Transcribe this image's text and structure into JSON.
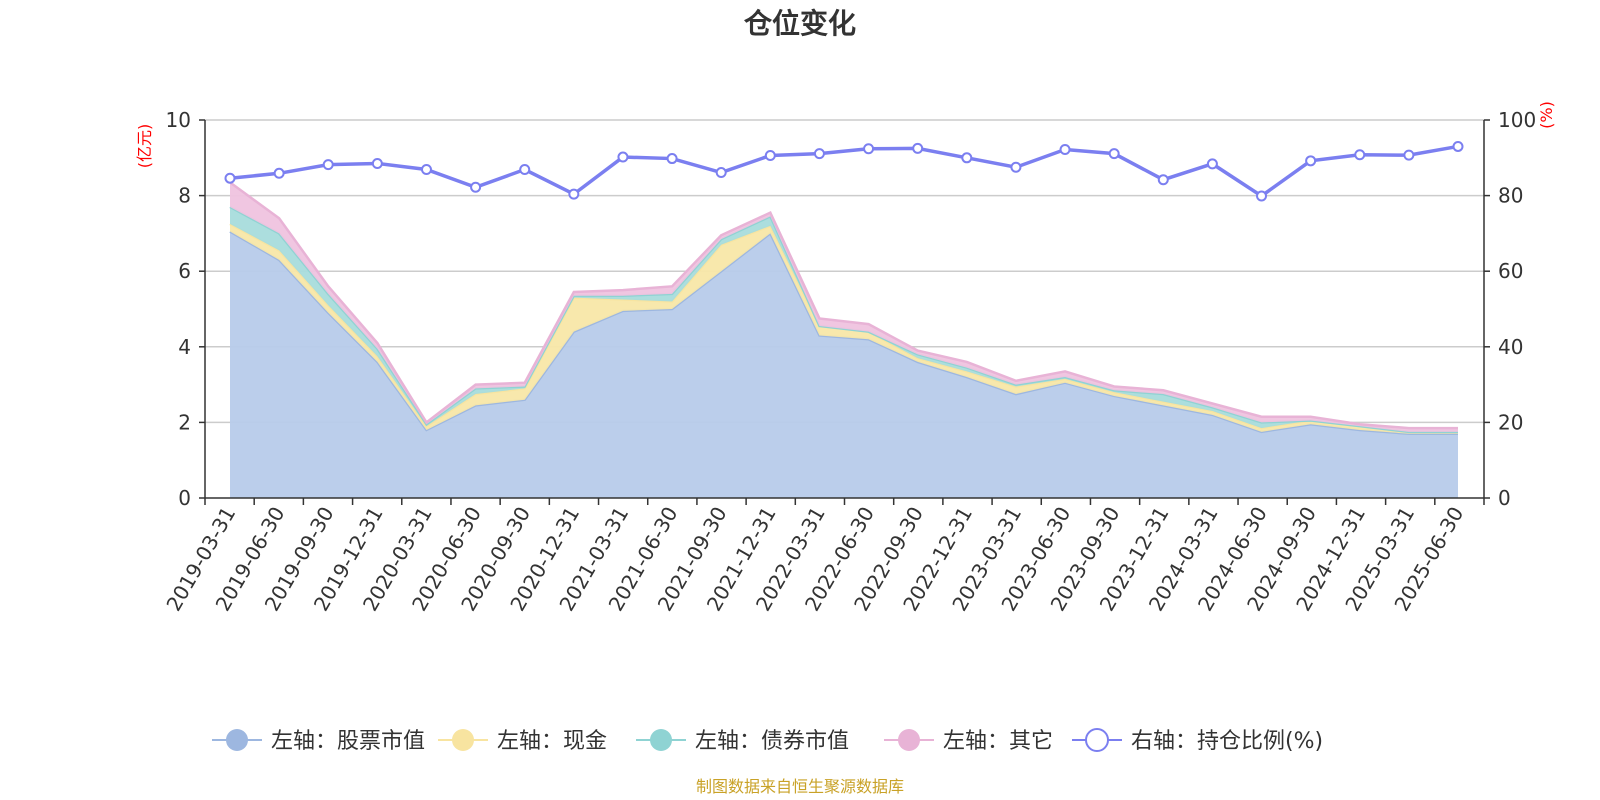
{
  "chart_data": {
    "type": "area",
    "title": "仓位变化",
    "source_text": "制图数据来自恒生聚源数据库",
    "left_axis": {
      "unit": "(亿元)",
      "min": 0,
      "max": 10,
      "ticks": [
        0,
        2,
        4,
        6,
        8,
        10
      ]
    },
    "right_axis": {
      "unit": "(%)",
      "min": 0,
      "max": 100,
      "ticks": [
        0,
        20,
        40,
        60,
        80,
        100
      ]
    },
    "grid": true,
    "legend_position": "bottom",
    "categories": [
      "2019-03-31",
      "2019-06-30",
      "2019-09-30",
      "2019-12-31",
      "2020-03-31",
      "2020-06-30",
      "2020-09-30",
      "2020-12-31",
      "2021-03-31",
      "2021-06-30",
      "2021-09-30",
      "2021-12-31",
      "2022-03-31",
      "2022-06-30",
      "2022-09-30",
      "2022-12-31",
      "2023-03-31",
      "2023-06-30",
      "2023-09-30",
      "2023-12-31",
      "2024-03-31",
      "2024-06-30",
      "2024-09-30",
      "2024-12-31",
      "2025-03-31",
      "2025-06-30"
    ],
    "stacked_series": [
      {
        "name": "左轴：股票市值",
        "color": "#9db7e0",
        "fill": "#b7cbea",
        "values": [
          7.05,
          6.3,
          4.9,
          3.6,
          1.8,
          2.45,
          2.6,
          4.4,
          4.95,
          5.0,
          6.0,
          7.0,
          4.3,
          4.2,
          3.6,
          3.2,
          2.75,
          3.05,
          2.7,
          2.45,
          2.2,
          1.75,
          1.95,
          1.8,
          1.7,
          1.7
        ]
      },
      {
        "name": "左轴：现金",
        "color": "#f8e4a0",
        "fill": "#f8e7a8",
        "values": [
          0.2,
          0.25,
          0.2,
          0.15,
          0.1,
          0.3,
          0.3,
          0.9,
          0.3,
          0.2,
          0.7,
          0.2,
          0.25,
          0.2,
          0.1,
          0.15,
          0.2,
          0.1,
          0.1,
          0.1,
          0.1,
          0.1,
          0.1,
          0.1,
          0.05,
          0.05
        ]
      },
      {
        "name": "左轴：债券市值",
        "color": "#8fd3d3",
        "fill": "#a8dcdc",
        "values": [
          0.45,
          0.45,
          0.3,
          0.2,
          0.05,
          0.15,
          0.05,
          0.05,
          0.1,
          0.2,
          0.15,
          0.25,
          0.0,
          0.0,
          0.1,
          0.1,
          0.05,
          0.05,
          0.05,
          0.2,
          0.1,
          0.15,
          0.0,
          0.0,
          0.0,
          0.0
        ]
      },
      {
        "name": "左轴：其它",
        "color": "#e8b3d6",
        "fill": "#efc3df",
        "values": [
          0.65,
          0.4,
          0.2,
          0.15,
          0.05,
          0.1,
          0.1,
          0.1,
          0.15,
          0.2,
          0.1,
          0.1,
          0.2,
          0.2,
          0.1,
          0.15,
          0.1,
          0.15,
          0.1,
          0.1,
          0.1,
          0.15,
          0.1,
          0.05,
          0.1,
          0.1
        ]
      }
    ],
    "line_series": {
      "name": "右轴：持仓比例(%)",
      "color": "#7b7ff0",
      "values": [
        84.6,
        85.9,
        88.2,
        88.5,
        86.9,
        82.2,
        86.9,
        80.4,
        90.2,
        89.8,
        86.1,
        90.6,
        91.1,
        92.4,
        92.5,
        90.0,
        87.5,
        92.2,
        91.1,
        84.2,
        88.4,
        79.9,
        89.2,
        90.8,
        90.7,
        93.0
      ]
    }
  }
}
